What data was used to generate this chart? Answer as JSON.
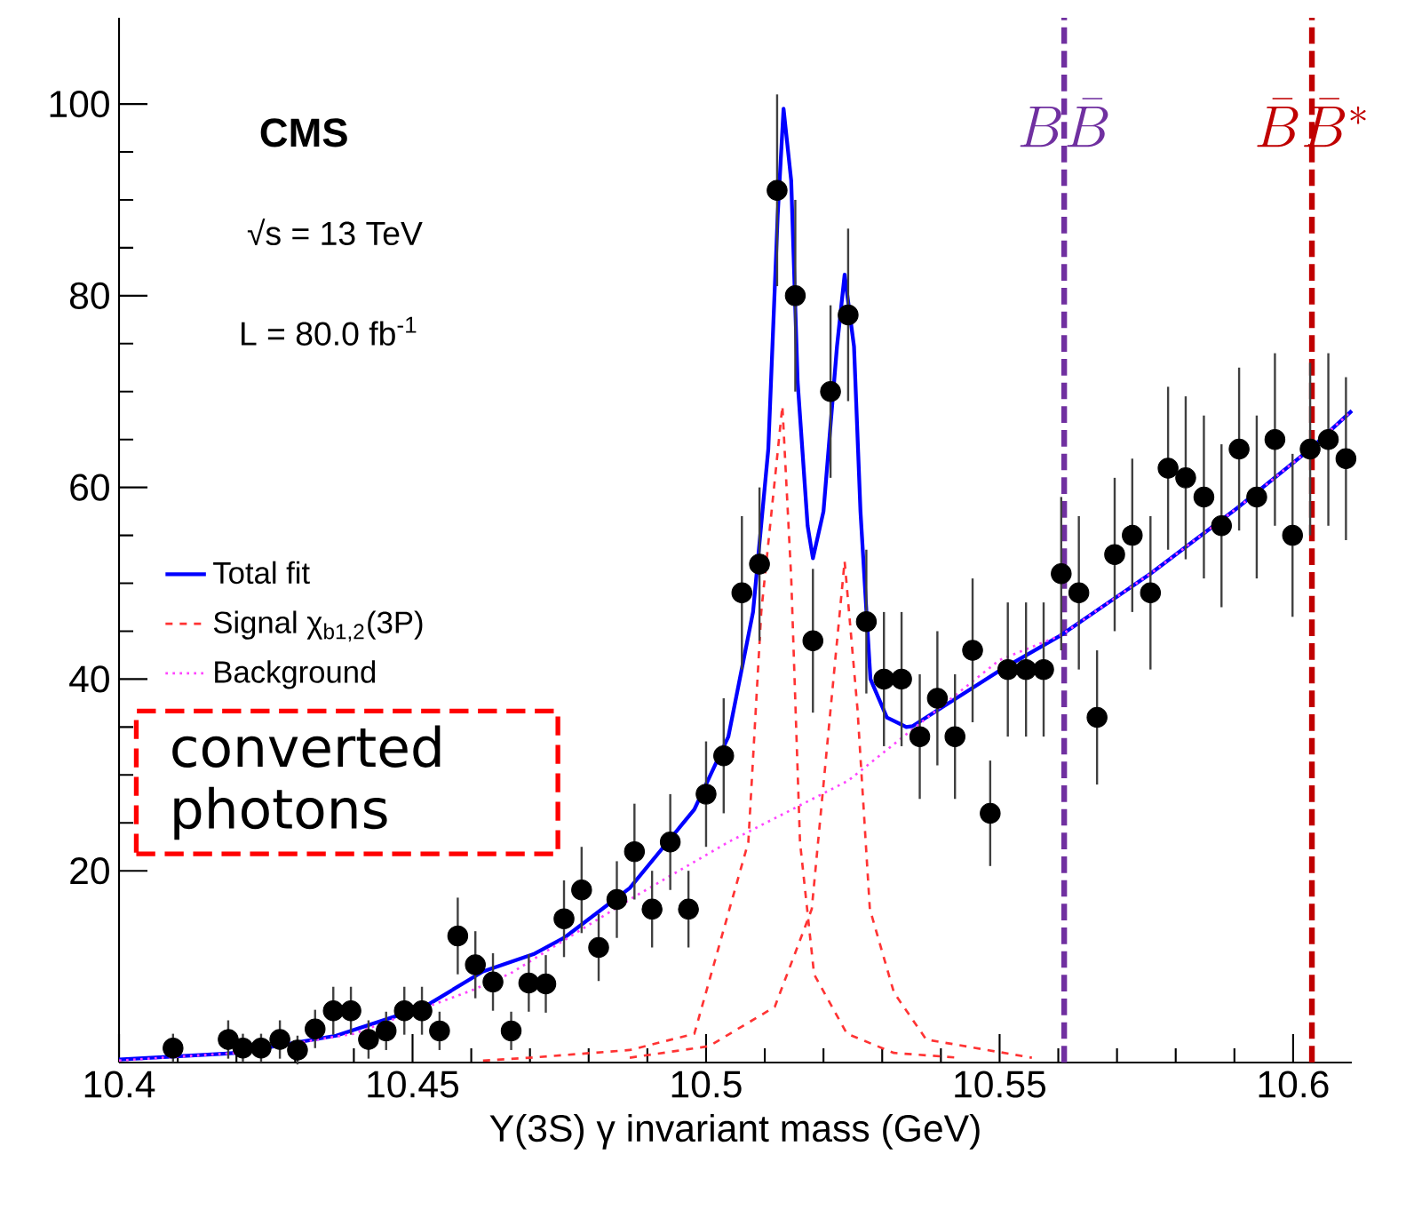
{
  "chart_data": {
    "type": "scatter",
    "xlabel": "Υ(3S) γ  invariant mass (GeV)",
    "xlim": [
      10.4,
      10.61
    ],
    "ylim": [
      0,
      109
    ],
    "xticks": [
      10.4,
      10.45,
      10.5,
      10.55,
      10.6
    ],
    "yticks": [
      20,
      40,
      60,
      80,
      100
    ],
    "legend": "left",
    "annotations": [
      "CMS",
      "√s = 13 TeV",
      "L = 80.0 fb$^{-1}$",
      "converted photons"
    ],
    "ref_lines": [
      {
        "axis": "x",
        "value": 10.561,
        "label": "B\\bar{B}",
        "color": "#7030a0",
        "line_style": "dashed"
      },
      {
        "axis": "x",
        "value": 10.6032,
        "label": "\\bar{B}\\bar{B}^*",
        "color": "#c00000",
        "line_style": "dashed"
      }
    ],
    "series": [
      {
        "type": "line",
        "name": "Total fit",
        "color": "#0000ff",
        "marker": "none",
        "line_style": "solid",
        "x": [
          10.4,
          10.42,
          10.437,
          10.452,
          10.462,
          10.4706,
          10.4758,
          10.487,
          10.498,
          10.5038,
          10.508,
          10.5106,
          10.5122,
          10.5132,
          10.5145,
          10.5156,
          10.5173,
          10.5182,
          10.52,
          10.5223,
          10.5236,
          10.5252,
          10.5263,
          10.528,
          10.5308,
          10.5341,
          10.5352,
          10.5503,
          10.5605,
          10.5757,
          10.5908,
          10.6029,
          10.61
        ],
        "values": [
          0.3,
          1,
          2.8,
          5.8,
          9.5,
          11.3,
          13,
          18.2,
          26.4,
          34,
          47,
          64,
          88.4,
          99.5,
          92,
          71,
          56,
          52.6,
          57.5,
          74.7,
          82.2,
          74.7,
          57.5,
          40,
          36,
          35,
          35.1,
          41,
          44.6,
          51,
          58,
          64,
          68
        ]
      },
      {
        "type": "line",
        "name": "Signal χ$_{b1,2}$(3P)",
        "color": "#ff3333",
        "marker": "none",
        "line_style": "dashed",
        "x": [
          10.462,
          10.47,
          10.487,
          10.498,
          10.5072,
          10.5094,
          10.513,
          10.5145,
          10.516,
          10.5184,
          10.524,
          10.532,
          10.543
        ],
        "values": [
          0.2,
          0.5,
          1.3,
          3,
          23,
          47,
          68.5,
          50.6,
          23,
          9.2,
          3,
          1,
          0.5
        ]
      },
      {
        "type": "line",
        "color": "#ff3333",
        "marker": "none",
        "line_style": "dashed",
        "x": [
          10.487,
          10.5005,
          10.5117,
          10.518,
          10.5212,
          10.5236,
          10.5258,
          10.5279,
          10.532,
          10.5375,
          10.5555
        ],
        "values": [
          0.5,
          1.7,
          5.8,
          16,
          36.8,
          52.3,
          36.8,
          16,
          7.3,
          2.4,
          0.5
        ]
      },
      {
        "type": "line",
        "name": "Background",
        "color": "#ff44ff",
        "marker": "none",
        "line_style": "dotted",
        "x": [
          10.4,
          10.42,
          10.44,
          10.46,
          10.4667,
          10.4878,
          10.5038,
          10.5242,
          10.55,
          10.5605,
          10.5757,
          10.5908,
          10.6029,
          10.61
        ],
        "values": [
          0.2,
          1,
          3,
          7.5,
          9.3,
          17.3,
          23,
          29.4,
          42,
          44.6,
          51,
          58,
          64,
          68
        ]
      },
      {
        "color": "#000000",
        "marker": "circle",
        "x": [
          10.4092,
          10.4186,
          10.4211,
          10.4242,
          10.4274,
          10.4304,
          10.4334,
          10.4365,
          10.4395,
          10.4425,
          10.4455,
          10.4486,
          10.4516,
          10.4546,
          10.4577,
          10.4607,
          10.4637,
          10.4668,
          10.4698,
          10.4727,
          10.4758,
          10.4788,
          10.4817,
          10.4848,
          10.4878,
          10.4908,
          10.4939,
          10.497,
          10.5,
          10.503,
          10.5061,
          10.5091,
          10.5121,
          10.5152,
          10.5182,
          10.5212,
          10.5242,
          10.5273,
          10.5303,
          10.5333,
          10.5364,
          10.5394,
          10.5424,
          10.5454,
          10.5484,
          10.5514,
          10.5545,
          10.5575,
          10.5605,
          10.5635,
          10.5666,
          10.5696,
          10.5726,
          10.5757,
          10.5787,
          10.5817,
          10.5848,
          10.5878,
          10.5908,
          10.5938,
          10.5969,
          10.5999,
          10.6029,
          10.606,
          10.609
        ],
        "values": [
          1.5,
          2.4,
          1.5,
          1.5,
          2.4,
          1.3,
          3.5,
          5.4,
          5.4,
          2.4,
          3.3,
          5.4,
          5.4,
          3.3,
          13.2,
          10.2,
          8.4,
          3.3,
          8.3,
          8.2,
          15,
          18,
          12,
          17,
          22,
          16,
          23,
          16,
          28,
          32,
          49,
          52,
          91,
          80,
          44,
          70,
          78,
          46,
          40,
          40,
          34,
          38,
          34,
          43,
          26,
          41,
          41,
          41,
          51,
          49,
          36,
          53,
          55,
          49,
          62,
          61,
          59,
          56,
          64,
          59,
          65,
          55,
          64,
          65,
          63
        ],
        "errors": [
          1.5,
          2,
          1.5,
          1.5,
          2,
          1.5,
          2,
          2.5,
          2.5,
          2,
          2,
          2.5,
          2.5,
          2,
          4,
          3.5,
          3,
          2,
          3,
          3,
          4,
          4.5,
          3.5,
          4,
          5,
          4,
          5,
          4,
          5.5,
          6,
          8,
          8,
          10,
          10,
          7.5,
          9,
          9,
          7.5,
          7,
          7,
          6.5,
          7,
          6.5,
          7.5,
          5.5,
          7,
          7,
          7,
          8,
          8,
          7,
          8,
          8,
          8,
          8.5,
          8.5,
          8.5,
          8.5,
          8.5,
          8.5,
          9,
          8.5,
          9,
          9,
          8.5
        ]
      }
    ]
  }
}
